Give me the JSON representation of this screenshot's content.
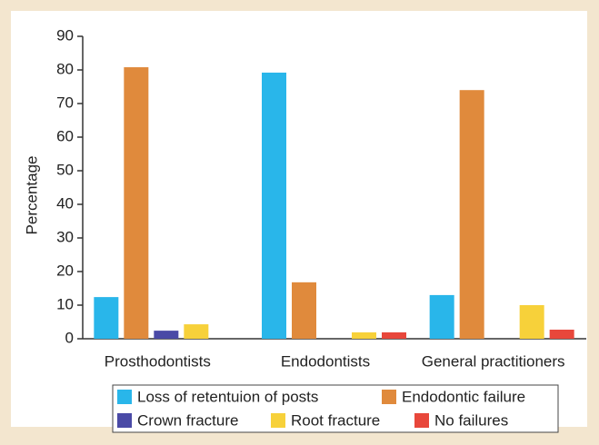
{
  "chart_data": {
    "type": "bar",
    "y_label": "Percentage",
    "categories": [
      "Prosthodontists",
      "Endodontists",
      "General practitioners"
    ],
    "series": [
      {
        "name": "Loss of retentuion of posts",
        "color": "#29b6ea",
        "values": [
          12.4,
          79.2,
          13
        ]
      },
      {
        "name": "Endodontic failure",
        "color": "#e08a3c",
        "values": [
          80.8,
          16.8,
          74
        ]
      },
      {
        "name": "Crown fracture",
        "color": "#4a4aa6",
        "values": [
          2.4,
          0,
          0
        ]
      },
      {
        "name": "Root fracture",
        "color": "#f7d13a",
        "values": [
          4.3,
          1.9,
          10
        ]
      },
      {
        "name": "No failures",
        "color": "#e8473b",
        "values": [
          0,
          1.9,
          2.7
        ]
      }
    ],
    "ylim": [
      0,
      90
    ],
    "yticks": [
      0,
      10,
      20,
      30,
      40,
      50,
      60,
      70,
      80,
      90
    ]
  }
}
